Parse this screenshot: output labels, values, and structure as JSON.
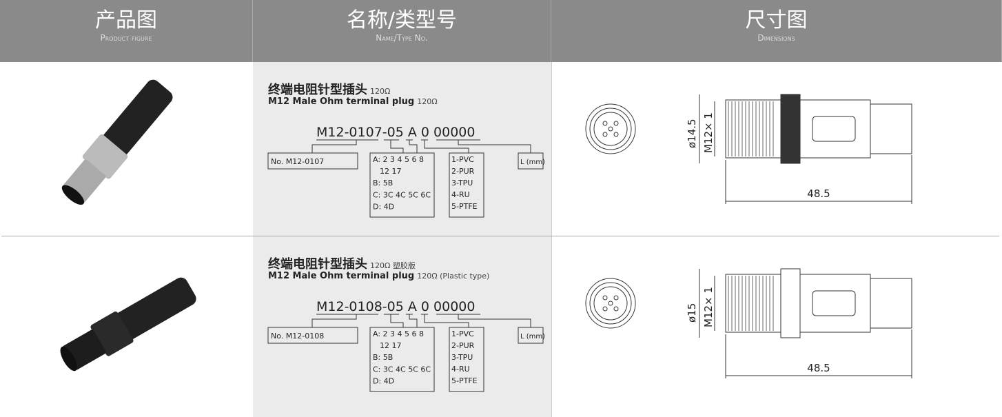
{
  "header": {
    "columns": [
      {
        "title": "产品图",
        "subtitle": "Product figure"
      },
      {
        "title": "名称/类型号",
        "subtitle": "Name/Type No."
      },
      {
        "title": "尺寸图",
        "subtitle": "Dimensions"
      }
    ]
  },
  "rows": [
    {
      "name": "终端电阻针型插头",
      "name_suffix": "120Ω",
      "name_en": "M12 Male Ohm terminal plug",
      "name_en_suffix": "120Ω",
      "code": "M12-0107-05 A 0 00000",
      "part_no": "No. M12-0107",
      "pin_options": [
        "A: 2 3 4 5 6 8",
        "12 17",
        "B: 5B",
        "C: 3C 4C 5C 6C",
        "D: 4D"
      ],
      "materials": [
        "1-PVC",
        "2-PUR",
        "3-TPU",
        "4-RU",
        "5-PTFE"
      ],
      "length_label": "L (mm)",
      "dims": {
        "diameter": "ø14.5",
        "thread": "M12× 1",
        "length": "48.5"
      }
    },
    {
      "name": "终端电阻针型插头",
      "name_suffix": "120Ω 塑胶版",
      "name_en": "M12 Male Ohm terminal plug",
      "name_en_suffix": "120Ω (Plastic type)",
      "code": "M12-0108-05 A 0 00000",
      "part_no": "No. M12-0108",
      "pin_options": [
        "A: 2 3 4 5 6 8",
        "12 17",
        "B: 5B",
        "C: 3C 4C 5C 6C",
        "D: 4D"
      ],
      "materials": [
        "1-PVC",
        "2-PUR",
        "3-TPU",
        "4-RU",
        "5-PTFE"
      ],
      "length_label": "L (mm)",
      "dims": {
        "diameter": "ø15",
        "thread": "M12× 1",
        "length": "48.5"
      }
    }
  ]
}
